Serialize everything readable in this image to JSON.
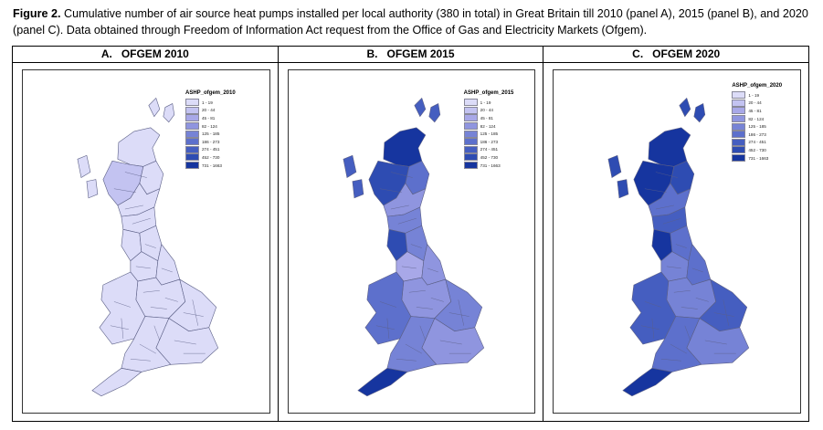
{
  "caption": {
    "label": "Figure 2.",
    "text": " Cumulative number of air source heat pumps installed per local authority (380 in total) in Great Britain till 2010 (panel A), 2015 (panel B), and 2020 (panel C). Data obtained through Freedom of Information Act request from the Office of Gas and Electricity Markets (Ofgem)."
  },
  "legend_classes": [
    "1 - 19",
    "20 - 44",
    "45 - 81",
    "82 - 124",
    "125 - 185",
    "186 - 273",
    "274 - 451",
    "452 - 730",
    "731 - 1663"
  ],
  "palette": [
    "#dcdcf8",
    "#c3c3f1",
    "#a8a8e8",
    "#8f95df",
    "#7683d6",
    "#5d70cc",
    "#455ec0",
    "#2e4cb2",
    "#16359f"
  ],
  "panels": [
    {
      "letter": "A.",
      "title": "OFGEM 2010",
      "legend_title": "ASHP_ofgem_2010",
      "regions": {
        "far_north": 0,
        "highland": 1,
        "aberdeen": 0,
        "central": 0,
        "borders": 0,
        "north_england": 0,
        "northwest": 0,
        "yorkshire": 0,
        "midlands": 0,
        "east": 0,
        "wales": 0,
        "southwest": 0,
        "southeast": 0,
        "cornwall": 0,
        "islands": 0,
        "lakes": 0
      }
    },
    {
      "letter": "B.",
      "title": "OFGEM 2015",
      "legend_title": "ASHP_ofgem_2015",
      "regions": {
        "far_north": 8,
        "highland": 7,
        "aberdeen": 5,
        "central": 3,
        "borders": 4,
        "north_england": 4,
        "northwest": 2,
        "yorkshire": 3,
        "midlands": 3,
        "east": 4,
        "wales": 5,
        "southwest": 4,
        "southeast": 3,
        "cornwall": 8,
        "islands": 6,
        "lakes": 7
      }
    },
    {
      "letter": "C.",
      "title": "OFGEM 2020",
      "legend_title": "ASHP_ofgem_2020",
      "regions": {
        "far_north": 8,
        "highland": 8,
        "aberdeen": 7,
        "central": 5,
        "borders": 6,
        "north_england": 5,
        "northwest": 4,
        "yorkshire": 5,
        "midlands": 4,
        "east": 6,
        "wales": 6,
        "southwest": 5,
        "southeast": 4,
        "cornwall": 8,
        "islands": 7,
        "lakes": 8
      }
    }
  ]
}
